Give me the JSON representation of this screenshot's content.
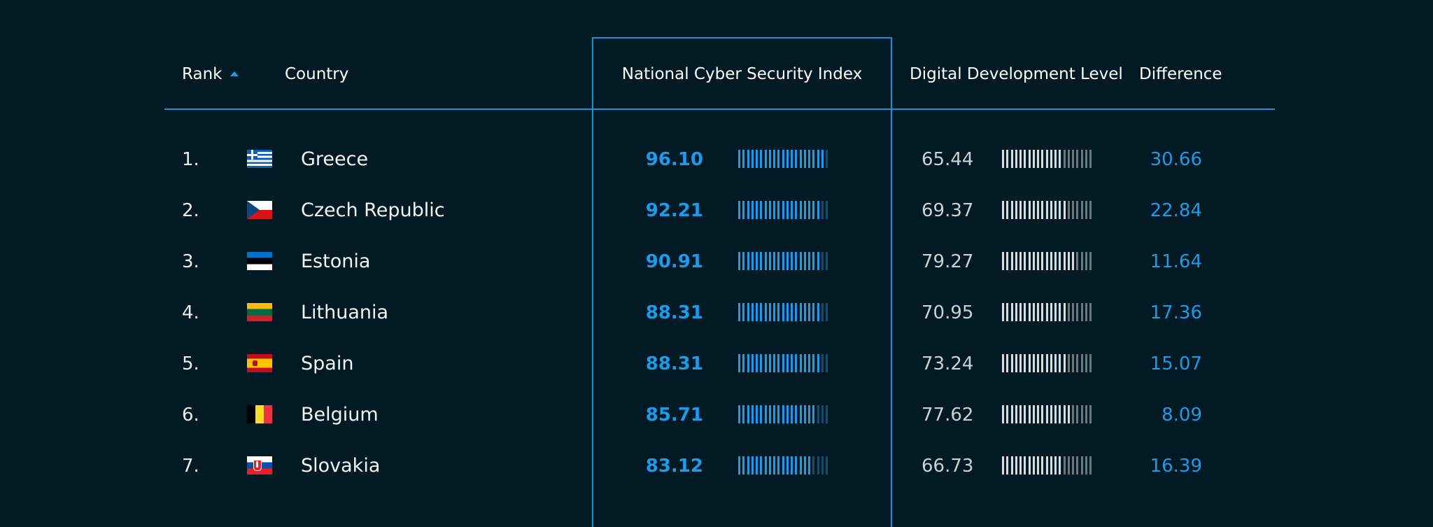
{
  "headers": {
    "rank": "Rank",
    "country": "Country",
    "ncsi": "National Cyber Security Index",
    "ddl": "Digital Development Level",
    "difference": "Difference"
  },
  "sort": {
    "column": "rank",
    "direction": "ascending",
    "icon": "sort-ascending-icon"
  },
  "colors": {
    "background": "#021a23",
    "accent": "#1f9ae6",
    "bar_active": "#1d9ae8",
    "bar_inactive": "#1c4a66",
    "ddl_bar_active": "#d7dde1",
    "ddl_bar_inactive": "#6a777e"
  },
  "bar_scale_max": 100,
  "rows": [
    {
      "rank": "1.",
      "country": "Greece",
      "flag": "greece-flag-icon",
      "ncsi": "96.10",
      "ddl": "65.44",
      "difference": "30.66"
    },
    {
      "rank": "2.",
      "country": "Czech Republic",
      "flag": "czech-republic-flag-icon",
      "ncsi": "92.21",
      "ddl": "69.37",
      "difference": "22.84"
    },
    {
      "rank": "3.",
      "country": "Estonia",
      "flag": "estonia-flag-icon",
      "ncsi": "90.91",
      "ddl": "79.27",
      "difference": "11.64"
    },
    {
      "rank": "4.",
      "country": "Lithuania",
      "flag": "lithuania-flag-icon",
      "ncsi": "88.31",
      "ddl": "70.95",
      "difference": "17.36"
    },
    {
      "rank": "5.",
      "country": "Spain",
      "flag": "spain-flag-icon",
      "ncsi": "88.31",
      "ddl": "73.24",
      "difference": "15.07"
    },
    {
      "rank": "6.",
      "country": "Belgium",
      "flag": "belgium-flag-icon",
      "ncsi": "85.71",
      "ddl": "77.62",
      "difference": "8.09"
    },
    {
      "rank": "7.",
      "country": "Slovakia",
      "flag": "slovakia-flag-icon",
      "ncsi": "83.12",
      "ddl": "66.73",
      "difference": "16.39"
    }
  ]
}
